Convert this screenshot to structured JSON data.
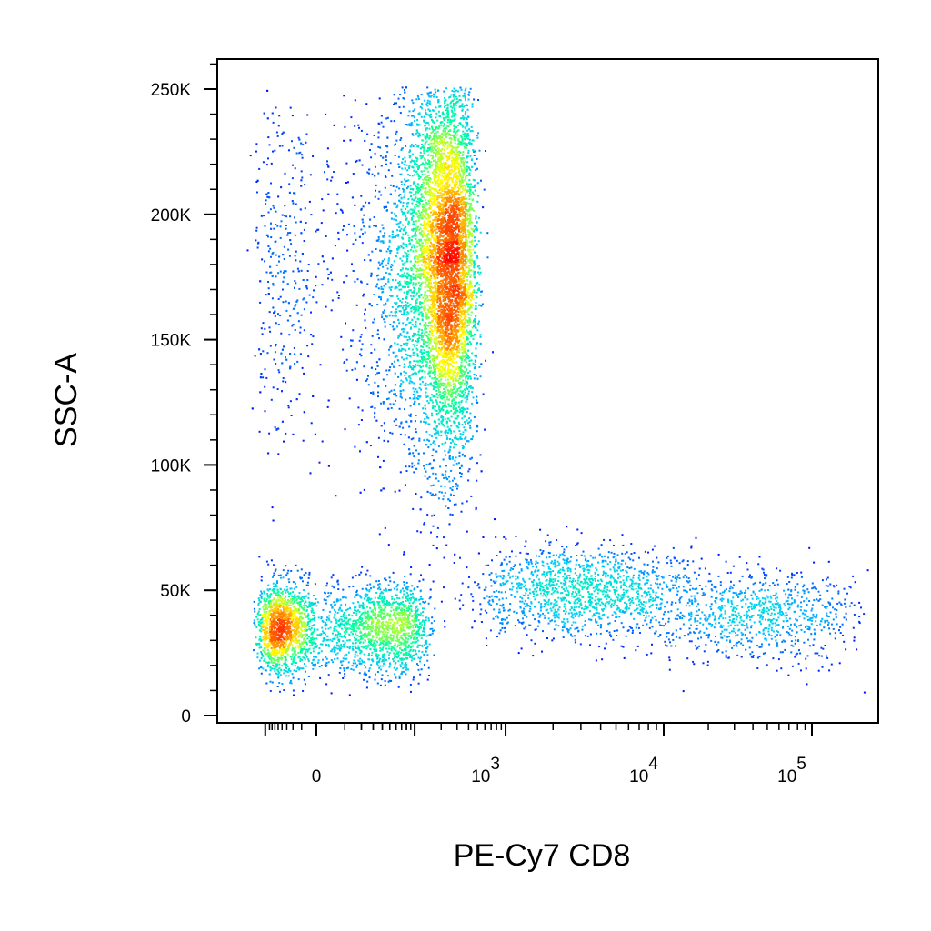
{
  "chart_data": {
    "type": "scatter",
    "title": "",
    "xlabel": "PE-Cy7 CD8",
    "ylabel": "SSC-A",
    "x_scale": "biexponential",
    "ylim": [
      0,
      262144
    ],
    "grid": false,
    "legend": "none",
    "colormap": [
      "#0000ff",
      "#00c8ff",
      "#00ffa0",
      "#ffff00",
      "#ff8000",
      "#ff0000"
    ],
    "y_ticks": [
      {
        "value": 0,
        "label": "0"
      },
      {
        "value": 50000,
        "label": "50K"
      },
      {
        "value": 100000,
        "label": "100K"
      },
      {
        "value": 150000,
        "label": "150K"
      },
      {
        "value": 200000,
        "label": "200K"
      },
      {
        "value": 250000,
        "label": "250K"
      }
    ],
    "x_ticks": [
      {
        "value": 0,
        "label": "0",
        "exponent": ""
      },
      {
        "value": 1000,
        "label": "10",
        "exponent": "3"
      },
      {
        "value": 10000,
        "label": "10",
        "exponent": "4"
      },
      {
        "value": 100000,
        "label": "10",
        "exponent": "5"
      }
    ],
    "populations": [
      {
        "x_center": 200,
        "y_center": 180000,
        "x_spread": 120,
        "y_spread": 38000,
        "weight": 0.62
      },
      {
        "x_center": 0,
        "y_center": 35000,
        "x_spread": 60,
        "y_spread": 9000,
        "weight": 0.22
      },
      {
        "x_center": 3000,
        "y_center": 50000,
        "x_spread": 2800,
        "y_spread": 9000,
        "weight": 0.1
      },
      {
        "x_center": 45000,
        "y_center": 40000,
        "x_spread": 15000,
        "y_spread": 9000,
        "weight": 0.06
      }
    ]
  }
}
